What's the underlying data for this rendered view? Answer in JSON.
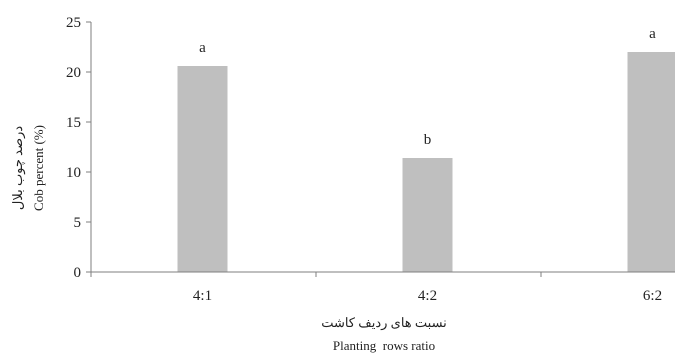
{
  "chart_data": {
    "type": "bar",
    "categories": [
      "4:1",
      "4:2",
      "6:2"
    ],
    "values": [
      20.6,
      11.4,
      22.0
    ],
    "significance_letters": [
      "a",
      "b",
      "a"
    ],
    "ylim": [
      0,
      25
    ],
    "yticks": [
      0,
      5,
      10,
      15,
      20,
      25
    ],
    "ylabel": "Cob percent (%)",
    "ylabel_fa": "درصد چوب بلال",
    "xlabel": "Planting  rows ratio",
    "xlabel_fa": "نسبت های ردیف کاشت",
    "grid": false,
    "legend": "none",
    "bar_color": "#bfbfbf",
    "axis_color": "#7f7f7f"
  }
}
